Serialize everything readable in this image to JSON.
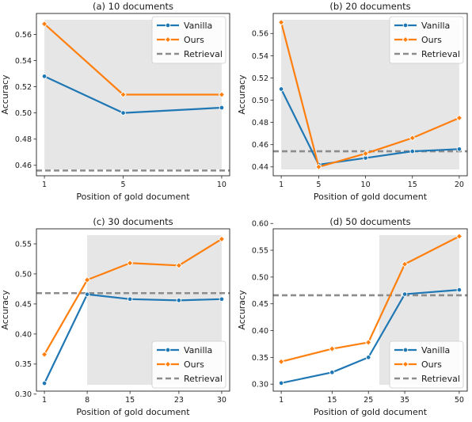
{
  "colors": {
    "vanilla": "#1f77b4",
    "ours": "#ff7f0e",
    "retrieval": "#8c8c8c",
    "shade": "#e6e6e6",
    "legend_border": "#cccccc"
  },
  "chart_data": [
    {
      "type": "line",
      "title": "(a) 10 documents",
      "xlabel": "Position of gold document",
      "ylabel": "Accuracy",
      "x": [
        1,
        5,
        10
      ],
      "x_ticks": [
        1,
        5,
        10
      ],
      "y_ticks": [
        0.46,
        0.48,
        0.5,
        0.52,
        0.54,
        0.56
      ],
      "ylim": [
        0.452,
        0.576
      ],
      "shade_range": [
        1,
        10
      ],
      "legend": "top-right",
      "series": [
        {
          "name": "Vanilla",
          "values": [
            0.528,
            0.5,
            0.504
          ]
        },
        {
          "name": "Ours",
          "values": [
            0.568,
            0.514,
            0.514
          ]
        }
      ],
      "reference": {
        "name": "Retrieval",
        "value": 0.456
      }
    },
    {
      "type": "line",
      "title": "(b) 20 documents",
      "xlabel": "Position of gold document",
      "ylabel": "Accuracy",
      "x": [
        1,
        5,
        10,
        15,
        20
      ],
      "x_ticks": [
        1,
        5,
        10,
        15,
        20
      ],
      "y_ticks": [
        0.44,
        0.46,
        0.48,
        0.5,
        0.52,
        0.54,
        0.56
      ],
      "ylim": [
        0.432,
        0.578
      ],
      "shade_range": [
        1,
        20
      ],
      "legend": "top-right",
      "series": [
        {
          "name": "Vanilla",
          "values": [
            0.51,
            0.442,
            0.448,
            0.454,
            0.456
          ]
        },
        {
          "name": "Ours",
          "values": [
            0.57,
            0.44,
            0.452,
            0.466,
            0.484
          ]
        }
      ],
      "reference": {
        "name": "Retrieval",
        "value": 0.454
      }
    },
    {
      "type": "line",
      "title": "(c) 30 documents",
      "xlabel": "Position of gold document",
      "ylabel": "Accuracy",
      "x": [
        1,
        8,
        15,
        23,
        30
      ],
      "x_ticks": [
        1,
        8,
        15,
        23,
        30
      ],
      "y_ticks": [
        0.3,
        0.35,
        0.4,
        0.45,
        0.5,
        0.55
      ],
      "ylim": [
        0.305,
        0.575
      ],
      "shade_range": [
        8,
        30
      ],
      "legend": "bottom-right",
      "series": [
        {
          "name": "Vanilla",
          "values": [
            0.318,
            0.466,
            0.458,
            0.456,
            0.458
          ]
        },
        {
          "name": "Ours",
          "values": [
            0.366,
            0.49,
            0.518,
            0.514,
            0.558
          ]
        }
      ],
      "reference": {
        "name": "Retrieval",
        "value": 0.468
      }
    },
    {
      "type": "line",
      "title": "(d) 50 documents",
      "xlabel": "Position of gold document",
      "ylabel": "Accuracy",
      "x": [
        1,
        15,
        25,
        35,
        50
      ],
      "x_ticks": [
        1,
        15,
        25,
        35,
        50
      ],
      "y_ticks": [
        0.3,
        0.35,
        0.4,
        0.45,
        0.5,
        0.55,
        0.6
      ],
      "ylim": [
        0.287,
        0.59
      ],
      "shade_range": [
        28,
        50
      ],
      "legend": "bottom-right",
      "series": [
        {
          "name": "Vanilla",
          "values": [
            0.302,
            0.322,
            0.35,
            0.468,
            0.476
          ]
        },
        {
          "name": "Ours",
          "values": [
            0.342,
            0.366,
            0.378,
            0.524,
            0.576
          ]
        }
      ],
      "reference": {
        "name": "Retrieval",
        "value": 0.466
      }
    }
  ]
}
